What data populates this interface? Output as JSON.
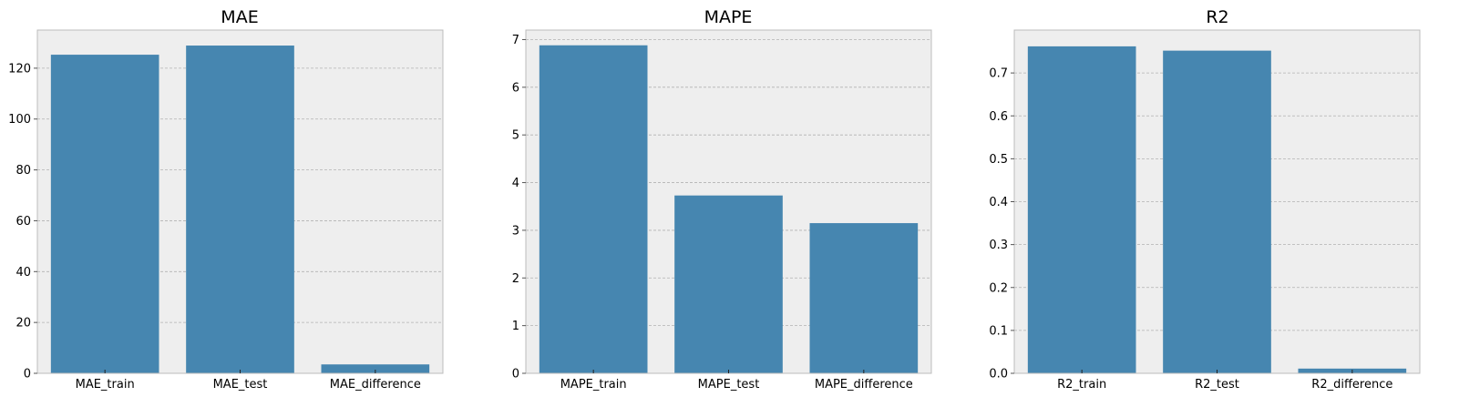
{
  "theme": {
    "background": "#ffffff",
    "plot_background": "#eeeeee",
    "grid_color": "#b2b2b2",
    "spine_color": "#bcbcbc",
    "bar_color": "#4686b0"
  },
  "chart_data": [
    {
      "type": "bar",
      "title": "MAE",
      "categories": [
        "MAE_train",
        "MAE_test",
        "MAE_difference"
      ],
      "values": [
        125.3,
        128.9,
        3.5
      ],
      "xlabel": "",
      "ylabel": "",
      "ylim": [
        0,
        135
      ],
      "yticks": [
        0,
        20,
        40,
        60,
        80,
        100,
        120
      ],
      "ytick_labels": [
        "0",
        "20",
        "40",
        "60",
        "80",
        "100",
        "120"
      ],
      "grid": "y"
    },
    {
      "type": "bar",
      "title": "MAPE",
      "categories": [
        "MAPE_train",
        "MAPE_test",
        "MAPE_difference"
      ],
      "values": [
        6.88,
        3.73,
        3.15
      ],
      "xlabel": "",
      "ylabel": "",
      "ylim": [
        0,
        7.2
      ],
      "yticks": [
        0,
        1,
        2,
        3,
        4,
        5,
        6,
        7
      ],
      "ytick_labels": [
        "0",
        "1",
        "2",
        "3",
        "4",
        "5",
        "6",
        "7"
      ],
      "grid": "y"
    },
    {
      "type": "bar",
      "title": "R2",
      "categories": [
        "R2_train",
        "R2_test",
        "R2_difference"
      ],
      "values": [
        0.762,
        0.752,
        0.011
      ],
      "xlabel": "",
      "ylabel": "",
      "ylim": [
        0,
        0.8
      ],
      "yticks": [
        0.0,
        0.1,
        0.2,
        0.3,
        0.4,
        0.5,
        0.6,
        0.7
      ],
      "ytick_labels": [
        "0.0",
        "0.1",
        "0.2",
        "0.3",
        "0.4",
        "0.5",
        "0.6",
        "0.7"
      ],
      "grid": "y"
    }
  ]
}
